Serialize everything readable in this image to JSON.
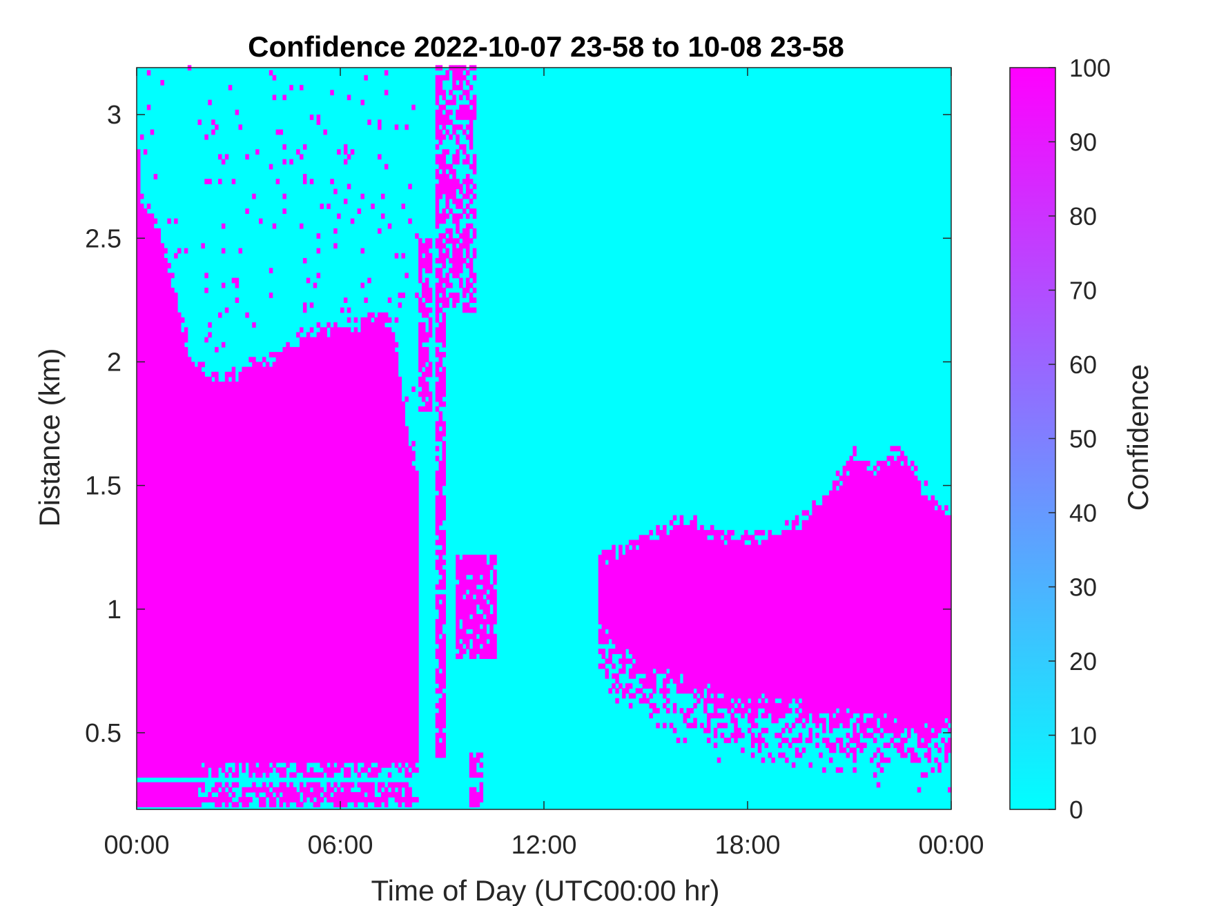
{
  "chart_data": {
    "type": "heatmap",
    "title": "Confidence 2022-10-07 23-58 to 10-08 23-58",
    "xlabel": "Time of Day (UTC00:00 hr)",
    "ylabel": "Distance (km)",
    "x_tick_labels": [
      "00:00",
      "06:00",
      "12:00",
      "18:00",
      "00:00"
    ],
    "x_tick_hours": [
      0,
      6,
      12,
      18,
      24
    ],
    "xlim_hours": [
      0,
      24
    ],
    "y_tick_labels": [
      "0.5",
      "1",
      "1.5",
      "2",
      "2.5",
      "3"
    ],
    "y_tick_values": [
      0.5,
      1,
      1.5,
      2,
      2.5,
      3
    ],
    "ylim_km": [
      0.19,
      3.19
    ],
    "colorbar": {
      "label": "Confidence",
      "range": [
        0,
        100
      ],
      "tick_labels": [
        "0",
        "10",
        "20",
        "30",
        "40",
        "50",
        "60",
        "70",
        "80",
        "90",
        "100"
      ],
      "tick_values": [
        0,
        10,
        20,
        30,
        40,
        50,
        60,
        70,
        80,
        90,
        100
      ],
      "colormap": "cool",
      "low_color": "#00FFFF",
      "high_color": "#FF00FF"
    },
    "values_present": [
      0,
      100
    ],
    "high_confidence_regions": [
      {
        "description": "low-level layer, night",
        "x_hours": [
          0,
          8.3
        ],
        "top_km": [
          2.6,
          2.45,
          2.2,
          1.95,
          1.9,
          1.95,
          2.1,
          2.12,
          2.15,
          1.6
        ],
        "bottom_km": 0.19
      },
      {
        "description": "column near 09:00",
        "x_hours": [
          8.7,
          10.0
        ],
        "bottom_km": 0.4,
        "top_km": 3.19
      },
      {
        "description": "cloud patch",
        "x_hours": [
          9.5,
          10.6
        ],
        "bottom_km": 0.8,
        "top_km": 1.25
      },
      {
        "description": "afternoon layer",
        "x_hours": [
          13.6,
          24
        ],
        "bottom_km": [
          0.9,
          0.75,
          0.65,
          0.6,
          0.6,
          0.55,
          0.5
        ],
        "top_km": [
          1.2,
          1.3,
          1.35,
          1.3,
          1.35,
          1.45,
          1.65,
          1.6,
          1.4
        ]
      }
    ]
  }
}
